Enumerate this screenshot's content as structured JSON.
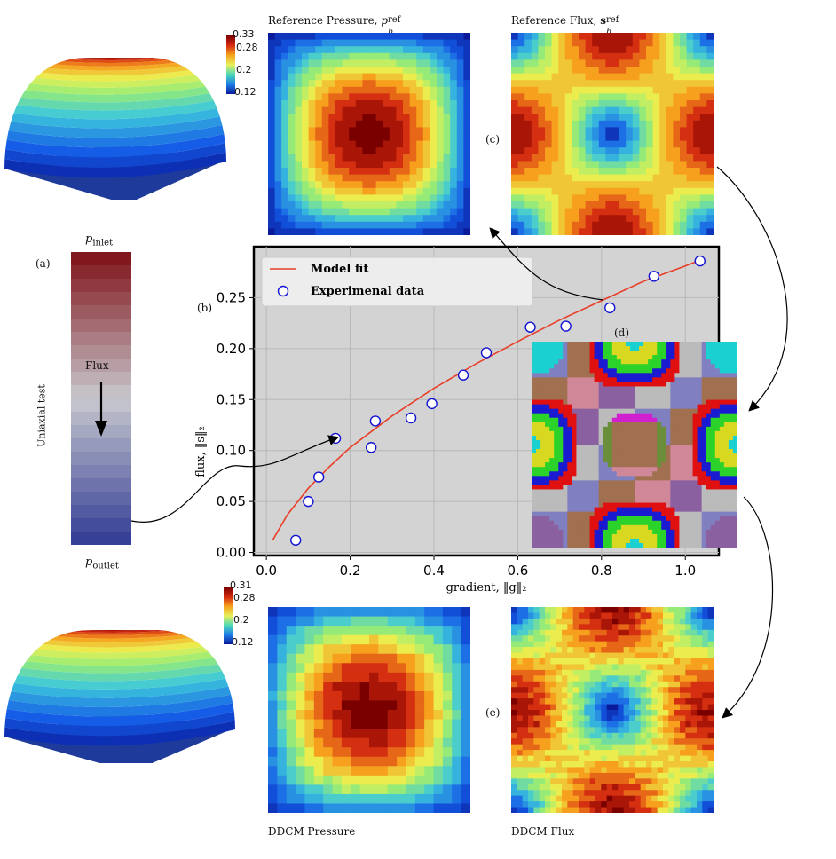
{
  "panels": {
    "a": {
      "tag": "(a)",
      "inlet": "p",
      "inlet_sub": "inlet",
      "outlet": "p",
      "outlet_sub": "outlet",
      "flux_label": "Flux",
      "test_label": "Uniaxial test"
    },
    "b": {
      "tag": "(b)"
    },
    "c": {
      "tag": "(c)"
    },
    "d": {
      "tag": "(d)"
    },
    "e": {
      "tag": "(e)"
    }
  },
  "titles": {
    "ref_pressure": "Reference Pressure,",
    "ref_pressure_sym": "p",
    "ref_pressure_sub": "h",
    "ref_pressure_sup": "ref",
    "ref_flux": "Reference Flux,",
    "ref_flux_sym": "s",
    "ref_flux_sub": "h",
    "ref_flux_sup": "ref",
    "ddcm_pressure": "DDCM Pressure",
    "ddcm_flux": "DDCM Flux"
  },
  "colorbars": {
    "top": {
      "ticks": [
        "0.33",
        "0.28",
        "0.2",
        "0.12"
      ]
    },
    "bottom": {
      "ticks": [
        "0.31",
        "0.28",
        "0.2",
        "0.12"
      ]
    }
  },
  "colors": {
    "fit_line": "#e8402a",
    "marker_edge": "#1414d2",
    "plot_bg": "#d3d3d3",
    "grid": "#b8b8b8"
  },
  "chart_data": {
    "type": "scatter",
    "xlabel": "gradient, ‖g‖₂",
    "ylabel": "flux, ‖s‖₂",
    "xlim": [
      -0.03,
      1.08
    ],
    "ylim": [
      -0.003,
      0.3
    ],
    "xticks": [
      "0.0",
      "0.2",
      "0.4",
      "0.6",
      "0.8",
      "1.0"
    ],
    "yticks": [
      "0.00",
      "0.05",
      "0.10",
      "0.15",
      "0.20",
      "0.25"
    ],
    "grid": true,
    "legend_position": "top-left",
    "series": [
      {
        "name": "Model fit",
        "kind": "line",
        "x": [
          0.015,
          0.05,
          0.1,
          0.15,
          0.2,
          0.3,
          0.4,
          0.5,
          0.6,
          0.7,
          0.8,
          0.9,
          1.0,
          1.03
        ],
        "y": [
          0.012,
          0.037,
          0.063,
          0.084,
          0.103,
          0.134,
          0.161,
          0.185,
          0.207,
          0.228,
          0.247,
          0.266,
          0.281,
          0.286
        ]
      },
      {
        "name": "Experimenal data",
        "kind": "scatter",
        "x": [
          0.07,
          0.1,
          0.125,
          0.165,
          0.25,
          0.26,
          0.345,
          0.395,
          0.47,
          0.525,
          0.63,
          0.715,
          0.82,
          0.925,
          1.035
        ],
        "y": [
          0.012,
          0.05,
          0.074,
          0.112,
          0.103,
          0.129,
          0.132,
          0.146,
          0.174,
          0.196,
          0.221,
          0.222,
          0.24,
          0.271,
          0.286
        ]
      }
    ]
  }
}
